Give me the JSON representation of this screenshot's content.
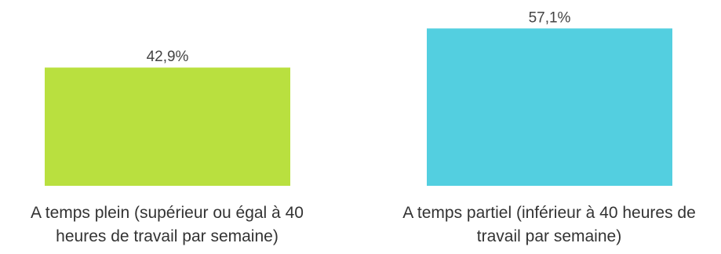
{
  "chart_data": {
    "type": "bar",
    "categories": [
      [
        "A temps plein (supérieur ou égal à 40",
        "heures de travail par semaine)"
      ],
      [
        "A temps partiel (inférieur à 40 heures de",
        "travail par semaine)"
      ]
    ],
    "values": [
      42.9,
      57.1
    ],
    "value_labels": [
      "42,9%",
      "57,1%"
    ],
    "colors": [
      "#b9e03f",
      "#53cfe0"
    ],
    "unit": "%",
    "title": "",
    "xlabel": "",
    "ylabel": "",
    "grid": false,
    "legend": "none"
  }
}
